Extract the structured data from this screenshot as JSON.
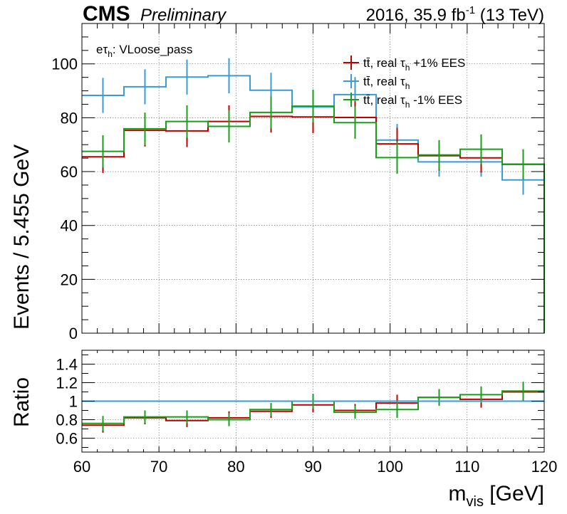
{
  "header": {
    "cms": "CMS",
    "preliminary": "Preliminary",
    "lumi_prefix": "2016, 35.9 fb",
    "lumi_exp": "-1",
    "lumi_suffix": " (13 TeV)"
  },
  "annotation": {
    "prefix": "e",
    "tau": "τ",
    "sub": "h",
    "suffix": ": VLoose_pass"
  },
  "colors": {
    "up": "#c00000",
    "nominal": "#3a9bd6",
    "down": "#16a016"
  },
  "chart_data": [
    {
      "type": "line",
      "panel": "main",
      "ylabel": "Events / 5.455 GeV",
      "xlim": [
        60,
        120
      ],
      "ylim": [
        0,
        115
      ],
      "grid": true,
      "legend_position": "top-right",
      "bin_edges": [
        60,
        65.455,
        70.909,
        76.364,
        81.818,
        87.273,
        92.727,
        98.182,
        103.636,
        109.091,
        114.545,
        120
      ],
      "x_ticks": [
        60,
        70,
        80,
        90,
        100,
        110,
        120
      ],
      "y_ticks": [
        0,
        20,
        40,
        60,
        80,
        100
      ],
      "series": [
        {
          "key": "up",
          "name": "tt̄, real τh +1% EES",
          "values": [
            65.5,
            75.3,
            75.1,
            78.6,
            80.5,
            80.3,
            80.1,
            70.3,
            65.9,
            65.1,
            62.7
          ],
          "errors": [
            6,
            6,
            6,
            6,
            6,
            6,
            6,
            6,
            5.5,
            5.5,
            5.5
          ]
        },
        {
          "key": "nominal",
          "name": "tt̄, real τh",
          "values": [
            88.3,
            91.5,
            95.1,
            95.6,
            90.2,
            84.0,
            88.6,
            71.7,
            63.6,
            63.6,
            56.9
          ],
          "errors": [
            6.5,
            6.5,
            6.5,
            6.5,
            6.5,
            6.5,
            6.5,
            6,
            5.5,
            5.5,
            5.5
          ]
        },
        {
          "key": "down",
          "name": "tt̄, real τh -1% EES",
          "values": [
            67.5,
            75.9,
            78.6,
            76.8,
            82.0,
            84.3,
            78.2,
            65.2,
            66.2,
            68.3,
            62.8
          ],
          "errors": [
            6,
            6,
            6,
            6,
            6,
            6,
            6,
            6,
            5.5,
            5.5,
            5.5
          ]
        }
      ]
    },
    {
      "type": "line",
      "panel": "ratio",
      "xlabel": "m_vis [GeV]",
      "ylabel": "Ratio",
      "xlim": [
        60,
        120
      ],
      "ylim": [
        0.45,
        1.55
      ],
      "grid": true,
      "bin_edges": [
        60,
        65.455,
        70.909,
        76.364,
        81.818,
        87.273,
        92.727,
        98.182,
        103.636,
        109.091,
        114.545,
        120
      ],
      "x_ticks": [
        60,
        70,
        80,
        90,
        100,
        110,
        120
      ],
      "y_ticks": [
        0.6,
        0.8,
        1,
        1.2,
        1.4
      ],
      "series": [
        {
          "key": "up",
          "values": [
            0.74,
            0.82,
            0.79,
            0.82,
            0.89,
            0.96,
            0.9,
            0.98,
            1.04,
            1.02,
            1.1
          ],
          "errors": [
            0.08,
            0.07,
            0.07,
            0.07,
            0.07,
            0.08,
            0.07,
            0.09,
            0.09,
            0.09,
            0.1
          ]
        },
        {
          "key": "nominal",
          "values": [
            1,
            1,
            1,
            1,
            1,
            1,
            1,
            1,
            1,
            1,
            1
          ],
          "errors": [
            0,
            0,
            0,
            0,
            0,
            0,
            0,
            0,
            0,
            0,
            0
          ]
        },
        {
          "key": "down",
          "values": [
            0.76,
            0.83,
            0.83,
            0.8,
            0.91,
            1.0,
            0.88,
            0.91,
            1.04,
            1.07,
            1.11
          ],
          "errors": [
            0.08,
            0.07,
            0.07,
            0.07,
            0.07,
            0.08,
            0.07,
            0.09,
            0.09,
            0.09,
            0.1
          ]
        }
      ]
    }
  ],
  "x_axis_title": {
    "main": "m",
    "sub": "vis",
    "unit": " [GeV]"
  }
}
